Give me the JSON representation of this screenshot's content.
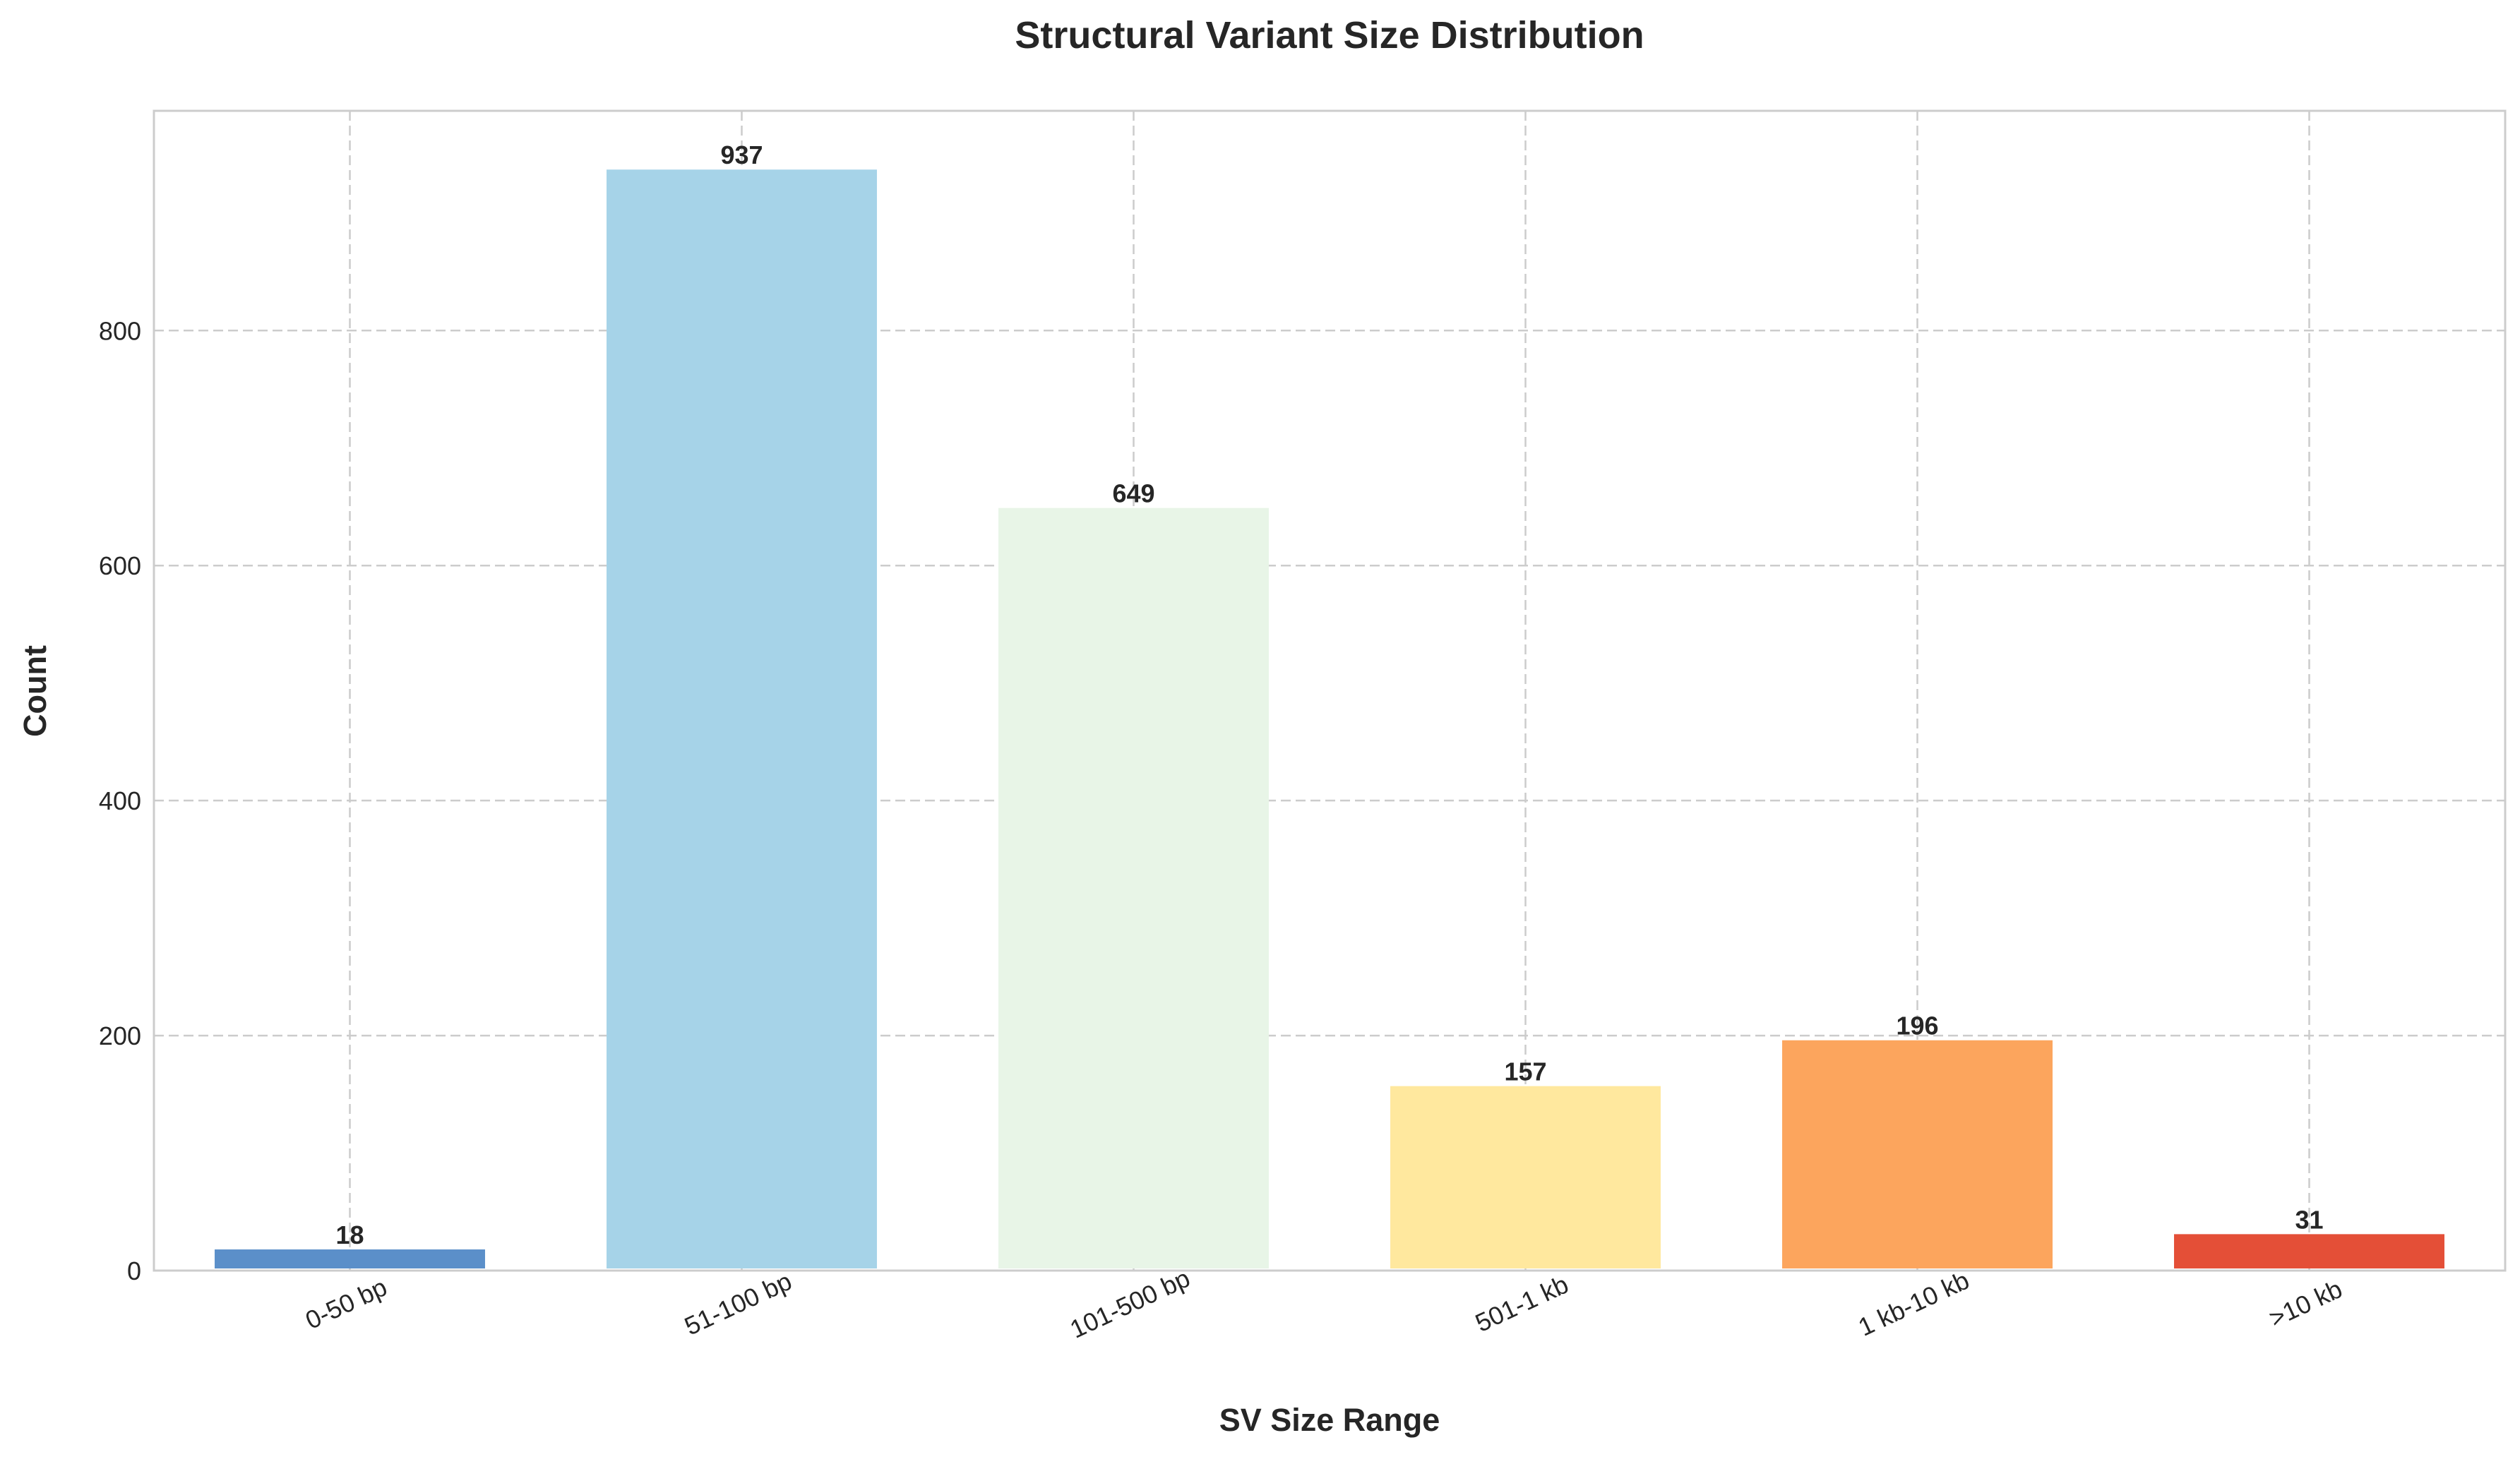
{
  "chart_data": {
    "type": "bar",
    "title": "Structural Variant Size Distribution",
    "xlabel": "SV Size Range",
    "ylabel": "Count",
    "categories": [
      "0-50 bp",
      "51-100 bp",
      "101-500 bp",
      "501-1 kb",
      "1 kb-10 kb",
      ">10 kb"
    ],
    "values": [
      18,
      937,
      649,
      157,
      196,
      31
    ],
    "value_labels": [
      "18",
      "937",
      "649",
      "157",
      "196",
      "31"
    ],
    "colors": [
      "#5b8fc9",
      "#a6d3e8",
      "#e8f5e7",
      "#ffe89e",
      "#fca55d",
      "#e44f37"
    ],
    "ylim": [
      0,
      987
    ],
    "yticks": [
      0,
      200,
      400,
      600,
      800
    ],
    "ytick_labels": [
      "0",
      "200",
      "400",
      "600",
      "800"
    ],
    "grid": true,
    "legend": "none",
    "xtick_rotation": "rotated ~25°"
  }
}
